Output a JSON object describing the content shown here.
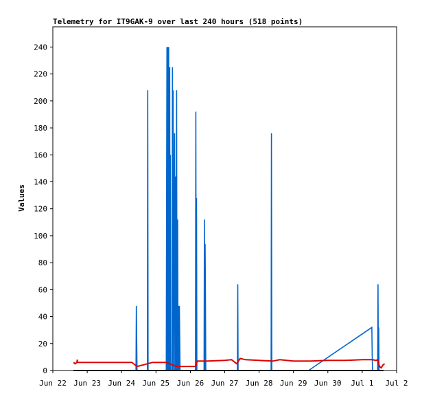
{
  "chart_data": {
    "type": "line",
    "title": "Telemetry for IT9GAK-9 over last 240 hours (518 points)",
    "xlabel": "",
    "ylabel": "Values",
    "ylim": [
      0,
      255
    ],
    "xlim": [
      0,
      10
    ],
    "grid": false,
    "x_tick_labels": [
      "Jun 22",
      "Jun 23",
      "Jun 24",
      "Jun 25",
      "Jun 26",
      "Jun 27",
      "Jun 28",
      "Jun 29",
      "Jun 30",
      "Jul 1",
      "Jul 2"
    ],
    "y_ticks": [
      0,
      20,
      40,
      60,
      80,
      100,
      120,
      140,
      160,
      180,
      200,
      220,
      240
    ],
    "x_unit": "days since Jun 22 00:00",
    "series": [
      {
        "name": "",
        "color": "#0066cc",
        "points": [
          [
            0.6,
            0
          ],
          [
            2.42,
            0
          ],
          [
            2.43,
            48
          ],
          [
            2.44,
            24
          ],
          [
            2.45,
            0
          ],
          [
            2.75,
            0
          ],
          [
            2.76,
            208
          ],
          [
            2.77,
            0
          ],
          [
            3.3,
            0
          ],
          [
            3.31,
            128
          ],
          [
            3.32,
            240
          ],
          [
            3.33,
            0
          ],
          [
            3.34,
            240
          ],
          [
            3.35,
            0
          ],
          [
            3.37,
            240
          ],
          [
            3.38,
            0
          ],
          [
            3.4,
            225
          ],
          [
            3.41,
            0
          ],
          [
            3.42,
            160
          ],
          [
            3.43,
            0
          ],
          [
            3.47,
            0
          ],
          [
            3.48,
            225
          ],
          [
            3.49,
            0
          ],
          [
            3.5,
            208
          ],
          [
            3.51,
            0
          ],
          [
            3.54,
            176
          ],
          [
            3.55,
            0
          ],
          [
            3.57,
            144
          ],
          [
            3.58,
            0
          ],
          [
            3.6,
            208
          ],
          [
            3.61,
            0
          ],
          [
            3.63,
            112
          ],
          [
            3.64,
            0
          ],
          [
            3.66,
            48
          ],
          [
            3.67,
            0
          ],
          [
            3.68,
            48
          ],
          [
            3.69,
            24
          ],
          [
            3.7,
            0
          ],
          [
            4.15,
            0
          ],
          [
            4.16,
            192
          ],
          [
            4.17,
            0
          ],
          [
            4.18,
            128
          ],
          [
            4.19,
            0
          ],
          [
            4.4,
            0
          ],
          [
            4.41,
            112
          ],
          [
            4.42,
            0
          ],
          [
            4.43,
            94
          ],
          [
            4.44,
            56
          ],
          [
            4.45,
            0
          ],
          [
            5.37,
            0
          ],
          [
            5.38,
            64
          ],
          [
            5.39,
            0
          ],
          [
            6.35,
            0
          ],
          [
            6.36,
            176
          ],
          [
            6.37,
            0
          ],
          [
            7.44,
            0
          ],
          [
            9.28,
            32
          ],
          [
            9.29,
            12
          ],
          [
            9.3,
            0
          ],
          [
            9.45,
            0
          ],
          [
            9.46,
            64
          ],
          [
            9.47,
            0
          ],
          [
            9.48,
            32
          ],
          [
            9.49,
            0
          ],
          [
            9.62,
            0
          ]
        ]
      },
      {
        "name": "",
        "color": "#dd0000",
        "points": [
          [
            0.6,
            6
          ],
          [
            0.65,
            5
          ],
          [
            0.7,
            6
          ],
          [
            0.71,
            8
          ],
          [
            0.72,
            6
          ],
          [
            1.5,
            6
          ],
          [
            2.3,
            6
          ],
          [
            2.45,
            3
          ],
          [
            2.6,
            4
          ],
          [
            2.75,
            5
          ],
          [
            2.9,
            6
          ],
          [
            3.3,
            6
          ],
          [
            3.6,
            3
          ],
          [
            4.15,
            3
          ],
          [
            4.2,
            7
          ],
          [
            4.5,
            7
          ],
          [
            5.0,
            7.5
          ],
          [
            5.2,
            8
          ],
          [
            5.35,
            5
          ],
          [
            5.45,
            9
          ],
          [
            5.6,
            8
          ],
          [
            6.0,
            7.5
          ],
          [
            6.4,
            7
          ],
          [
            6.6,
            8
          ],
          [
            7.0,
            7
          ],
          [
            7.5,
            7
          ],
          [
            8.0,
            7.5
          ],
          [
            8.5,
            7.5
          ],
          [
            9.0,
            8
          ],
          [
            9.3,
            8
          ],
          [
            9.4,
            7.5
          ],
          [
            9.45,
            8
          ],
          [
            9.5,
            3
          ],
          [
            9.55,
            2
          ],
          [
            9.6,
            4
          ],
          [
            9.65,
            5
          ]
        ]
      },
      {
        "name": "",
        "color": "#000000",
        "points": [
          [
            0.6,
            0
          ],
          [
            9.62,
            0
          ]
        ]
      }
    ]
  }
}
